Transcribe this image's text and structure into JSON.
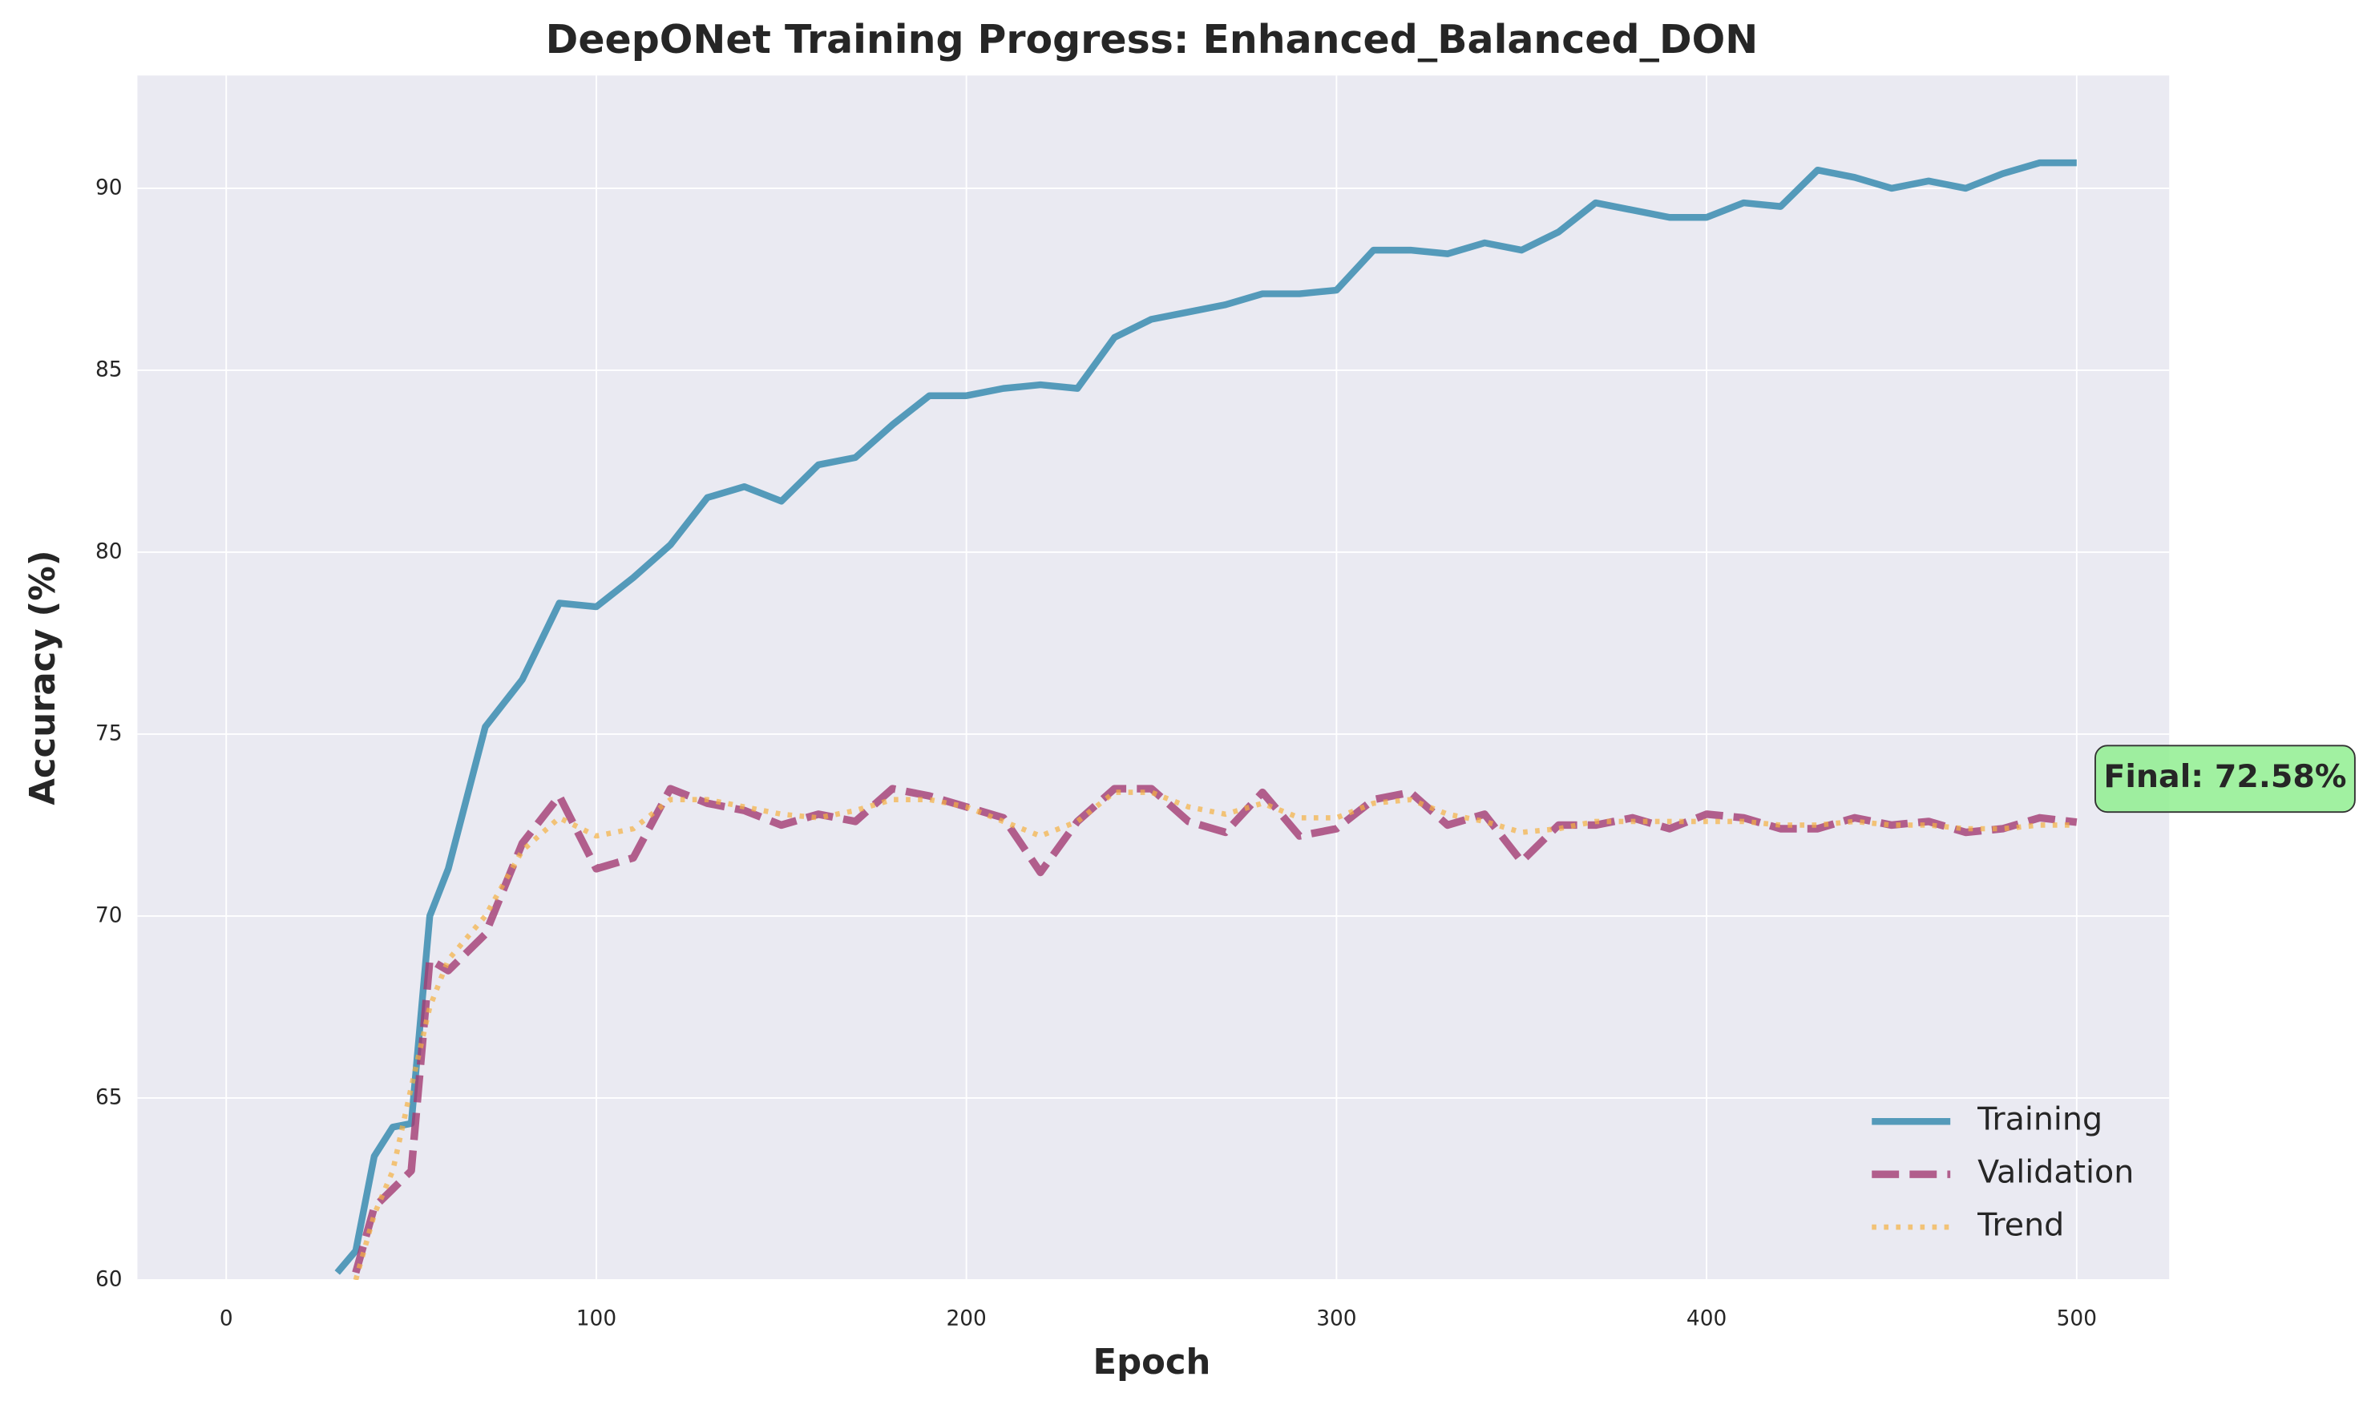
{
  "chart_data": {
    "type": "line",
    "title": "DeepONet Training Progress: Enhanced_Balanced_DON",
    "x_label": "Epoch",
    "y_label": "Accuracy (%)",
    "x": [
      30,
      35,
      40,
      45,
      50,
      55,
      60,
      70,
      80,
      90,
      100,
      110,
      120,
      130,
      140,
      150,
      160,
      170,
      180,
      190,
      200,
      210,
      220,
      230,
      240,
      250,
      260,
      270,
      280,
      290,
      300,
      310,
      320,
      330,
      340,
      350,
      360,
      370,
      380,
      390,
      400,
      410,
      420,
      430,
      440,
      450,
      460,
      470,
      480,
      490,
      500
    ],
    "series": [
      {
        "name": "Training",
        "color": "#2e86ab",
        "style": "solid",
        "values": [
          60.2,
          60.8,
          63.4,
          64.2,
          64.3,
          70,
          71.3,
          75.2,
          76.5,
          78.6,
          78.5,
          79.3,
          80.2,
          81.5,
          81.8,
          81.4,
          82.4,
          82.6,
          83.5,
          84.3,
          84.3,
          84.5,
          84.6,
          84.5,
          85.9,
          86.4,
          86.6,
          86.8,
          87.1,
          87.1,
          87.2,
          88.3,
          88.3,
          88.2,
          88.5,
          88.3,
          88.8,
          89.6,
          89.4,
          89.2,
          89.2,
          89.6,
          89.5,
          90.5,
          90.3,
          90,
          90.2,
          90,
          90.4,
          90.7,
          90.7
        ]
      },
      {
        "name": "Validation",
        "color": "#a23b72",
        "style": "dashed",
        "values": [
          null,
          60.2,
          62,
          62.5,
          63,
          68.8,
          68.5,
          69.5,
          72,
          73.3,
          71.3,
          71.6,
          73.5,
          73.1,
          72.9,
          72.5,
          72.8,
          72.6,
          73.5,
          73.3,
          73,
          72.7,
          71.2,
          72.6,
          73.5,
          73.5,
          72.6,
          72.3,
          73.4,
          72.2,
          72.4,
          73.2,
          73.4,
          72.5,
          72.8,
          71.5,
          72.5,
          72.5,
          72.7,
          72.4,
          72.8,
          72.7,
          72.4,
          72.4,
          72.7,
          72.5,
          72.6,
          72.3,
          72.4,
          72.7,
          72.58
        ]
      },
      {
        "name": "Trend",
        "color": "#f5b041",
        "style": "dotted",
        "values": [
          null,
          60,
          61.8,
          63,
          65.3,
          67.5,
          68.8,
          70,
          71.8,
          72.7,
          72.2,
          72.4,
          73.2,
          73.2,
          73,
          72.8,
          72.7,
          72.9,
          73.2,
          73.2,
          73,
          72.6,
          72.2,
          72.6,
          73.4,
          73.4,
          73,
          72.8,
          73.1,
          72.7,
          72.7,
          73.1,
          73.2,
          72.8,
          72.6,
          72.3,
          72.4,
          72.6,
          72.6,
          72.6,
          72.6,
          72.6,
          72.5,
          72.5,
          72.6,
          72.5,
          72.5,
          72.4,
          72.4,
          72.5,
          72.5
        ]
      }
    ],
    "annotation": "Final: 72.58%",
    "xlim": [
      -24,
      525
    ],
    "ylim": [
      60,
      93.1
    ],
    "xticks": [
      0,
      100,
      200,
      300,
      400,
      500
    ],
    "yticks": [
      60,
      65,
      70,
      75,
      80,
      85,
      90
    ],
    "grid": true,
    "legend": "lower right"
  }
}
